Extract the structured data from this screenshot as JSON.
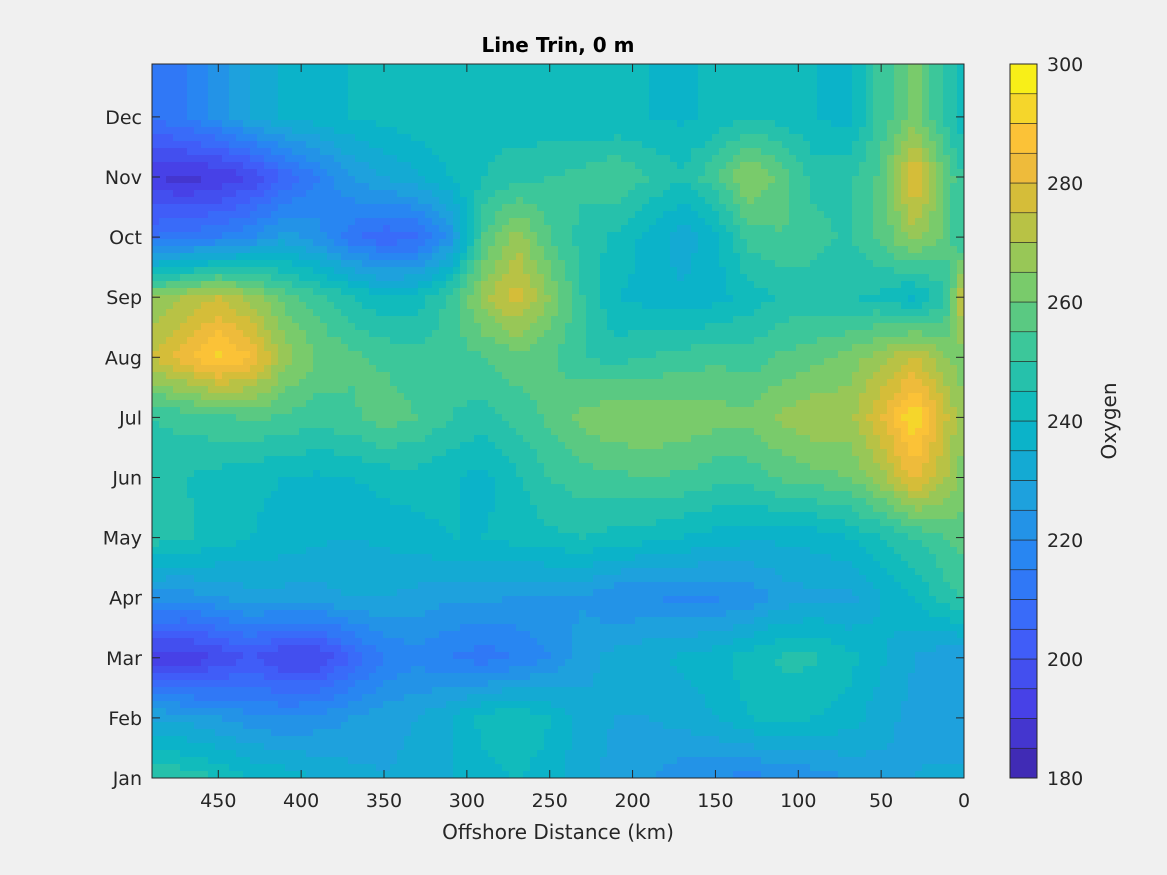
{
  "chart_data": {
    "type": "heatmap",
    "title": "Line Trin, 0 m",
    "xlabel": "Offshore Distance (km)",
    "ylabel": "",
    "xlim": [
      490,
      0
    ],
    "x_reversed": true,
    "x_ticks": [
      450,
      400,
      350,
      300,
      250,
      200,
      150,
      100,
      50,
      0
    ],
    "y_ticks": [
      "Jan",
      "Feb",
      "Mar",
      "Apr",
      "May",
      "Jun",
      "Jul",
      "Aug",
      "Sep",
      "Oct",
      "Nov",
      "Dec"
    ],
    "colorbar": {
      "label": "Oxygen",
      "range": [
        180,
        300
      ],
      "ticks": [
        180,
        200,
        220,
        240,
        260,
        280,
        300
      ],
      "levels": [
        180,
        185,
        190,
        195,
        200,
        205,
        210,
        215,
        220,
        225,
        230,
        235,
        240,
        245,
        250,
        255,
        260,
        265,
        270,
        275,
        280,
        285,
        290,
        295,
        300
      ],
      "colormap": "parula"
    },
    "field": {
      "x_km": [
        490,
        470,
        450,
        430,
        410,
        390,
        370,
        350,
        330,
        310,
        290,
        270,
        250,
        230,
        210,
        190,
        170,
        150,
        130,
        110,
        90,
        70,
        50,
        30,
        10,
        0
      ],
      "months": [
        "Jan",
        "Feb",
        "Mar",
        "Apr",
        "May",
        "Jun",
        "Jul",
        "Aug",
        "Sep",
        "Oct",
        "Nov",
        "Dec"
      ],
      "oxygen": [
        [
          250,
          248,
          245,
          240,
          238,
          235,
          232,
          230,
          232,
          235,
          238,
          240,
          238,
          232,
          228,
          225,
          222,
          220,
          218,
          220,
          222,
          225,
          228,
          230,
          232,
          232
        ],
        [
          230,
          228,
          225,
          222,
          220,
          222,
          225,
          228,
          230,
          235,
          242,
          245,
          240,
          232,
          230,
          230,
          232,
          235,
          240,
          242,
          240,
          238,
          232,
          228,
          225,
          225
        ],
        [
          192,
          190,
          195,
          200,
          194,
          194,
          205,
          215,
          218,
          215,
          212,
          215,
          220,
          228,
          232,
          234,
          236,
          238,
          243,
          246,
          246,
          242,
          236,
          230,
          226,
          226
        ],
        [
          222,
          222,
          225,
          228,
          228,
          228,
          230,
          230,
          228,
          226,
          226,
          225,
          224,
          224,
          220,
          220,
          219,
          219,
          221,
          227,
          229,
          228,
          235,
          240,
          248,
          250
        ],
        [
          248,
          246,
          243,
          240,
          238,
          236,
          235,
          236,
          238,
          240,
          240,
          242,
          244,
          245,
          243,
          242,
          240,
          238,
          236,
          236,
          237,
          240,
          245,
          250,
          255,
          258
        ],
        [
          246,
          245,
          243,
          241,
          240,
          239,
          240,
          242,
          243,
          241,
          238,
          244,
          250,
          253,
          254,
          255,
          254,
          252,
          252,
          256,
          258,
          260,
          268,
          282,
          270,
          262
        ],
        [
          250,
          252,
          254,
          256,
          254,
          252,
          254,
          258,
          255,
          250,
          248,
          252,
          256,
          262,
          265,
          265,
          264,
          262,
          262,
          266,
          270,
          268,
          280,
          295,
          275,
          265
        ],
        [
          275,
          283,
          292,
          285,
          268,
          260,
          256,
          254,
          252,
          252,
          255,
          258,
          256,
          250,
          248,
          250,
          252,
          254,
          252,
          256,
          258,
          262,
          268,
          275,
          265,
          262
        ],
        [
          265,
          270,
          275,
          268,
          258,
          252,
          246,
          240,
          242,
          252,
          268,
          278,
          265,
          250,
          240,
          238,
          236,
          238,
          242,
          246,
          247,
          245,
          244,
          238,
          250,
          280
        ],
        [
          210,
          212,
          215,
          220,
          228,
          222,
          212,
          206,
          208,
          222,
          255,
          268,
          255,
          248,
          244,
          238,
          232,
          238,
          252,
          255,
          252,
          249,
          256,
          268,
          258,
          248
        ],
        [
          190,
          188,
          190,
          195,
          205,
          215,
          225,
          230,
          234,
          240,
          245,
          248,
          250,
          252,
          255,
          250,
          246,
          254,
          266,
          258,
          248,
          249,
          256,
          282,
          258,
          250
        ],
        [
          210,
          215,
          222,
          230,
          236,
          238,
          240,
          242,
          244,
          244,
          243,
          242,
          241,
          240,
          240,
          240,
          239,
          241,
          245,
          243,
          240,
          238,
          252,
          262,
          248,
          240
        ]
      ]
    }
  }
}
